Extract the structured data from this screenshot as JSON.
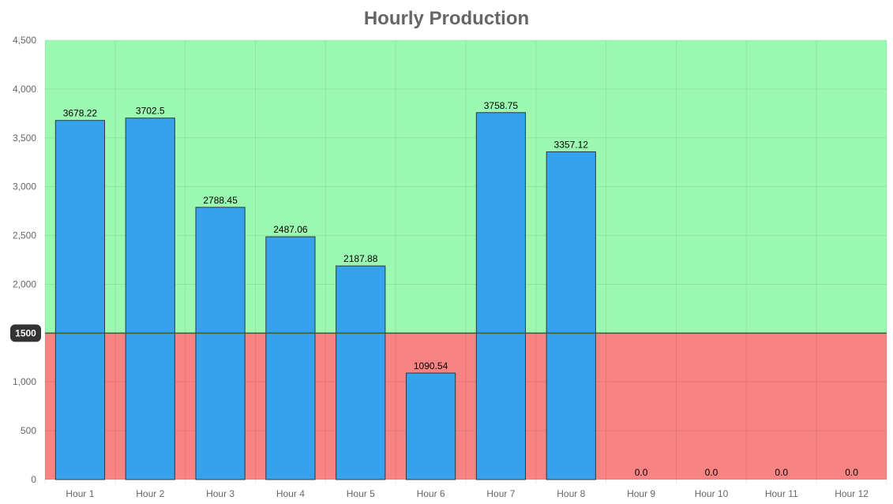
{
  "chart_data": {
    "type": "bar",
    "title": "Hourly Production",
    "xlabel": "",
    "ylabel": "",
    "categories": [
      "Hour 1",
      "Hour 2",
      "Hour 3",
      "Hour 4",
      "Hour 5",
      "Hour 6",
      "Hour 7",
      "Hour 8",
      "Hour 9",
      "Hour 10",
      "Hour 11",
      "Hour 12"
    ],
    "values": [
      3678.22,
      3702.5,
      2788.45,
      2487.06,
      2187.88,
      1090.54,
      3758.75,
      3357.12,
      0.0,
      0.0,
      0.0,
      0.0
    ],
    "data_labels": [
      "3678.22",
      "3702.5",
      "2788.45",
      "2487.06",
      "2187.88",
      "1090.54",
      "3758.75",
      "3357.12",
      "0.0",
      "0.0",
      "0.0",
      "0.0"
    ],
    "ylim": [
      0,
      4500
    ],
    "y_ticks": [
      0,
      500,
      1000,
      1500,
      2000,
      2500,
      3000,
      3500,
      4000,
      4500
    ],
    "y_tick_labels": [
      "0",
      "500",
      "1,000",
      "1,500",
      "2,000",
      "2,500",
      "3,000",
      "3,500",
      "4,000",
      "4,500"
    ],
    "threshold": {
      "value": 1500,
      "label": "1500"
    },
    "grid": true,
    "legend": "none",
    "colors": {
      "bar": "#36a2eb",
      "bar_border": "#2b3a42",
      "above_threshold": "#9cf9b1",
      "below_threshold": "#f88383",
      "threshold_line": "#3a5a3a",
      "threshold_badge": "#333333",
      "grid": "rgba(0,0,0,0.08)",
      "title": "#666666"
    }
  }
}
